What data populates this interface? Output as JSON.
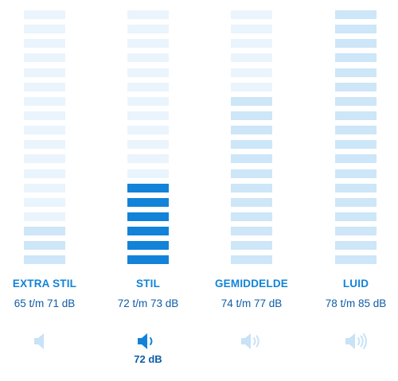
{
  "levels": [
    {
      "label": "EXTRA STIL",
      "range": "65 t/m 71 dB",
      "icon": "speaker-muted-icon",
      "active": false,
      "bars_total": 18,
      "bars_medium": 3,
      "bars_active": 0
    },
    {
      "label": "STIL",
      "range": "72 t/m 73 dB",
      "icon": "speaker-one-wave-icon",
      "active": true,
      "bars_total": 18,
      "bars_medium": 0,
      "bars_active": 6
    },
    {
      "label": "GEMIDDELDE",
      "range": "74 t/m 77 dB",
      "icon": "speaker-two-waves-icon",
      "active": false,
      "bars_total": 18,
      "bars_medium": 12,
      "bars_active": 0
    },
    {
      "label": "LUID",
      "range": "78 t/m 85 dB",
      "icon": "speaker-three-waves-icon",
      "active": false,
      "bars_total": 18,
      "bars_medium": 18,
      "bars_active": 0
    }
  ],
  "current_value": "72 dB",
  "colors": {
    "active": "#1283d8",
    "medium": "#cde6f8",
    "light": "#eaf4fd",
    "icon_inactive": "#c8e2f6",
    "text": "#0f5ca8"
  }
}
